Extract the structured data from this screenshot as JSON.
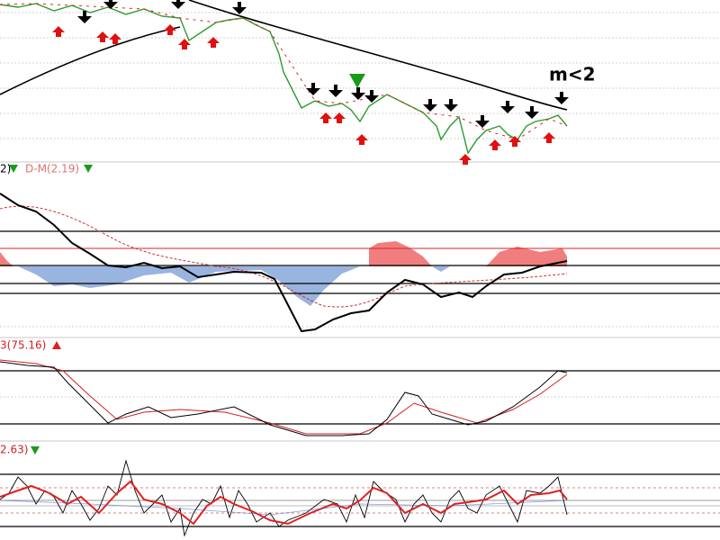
{
  "panels": [
    {
      "annotation": "m<2"
    },
    {
      "label_left": "2)",
      "label": "D-M(2.19)"
    },
    {
      "label": "3(75.16)"
    },
    {
      "label": "2.63)"
    }
  ]
}
